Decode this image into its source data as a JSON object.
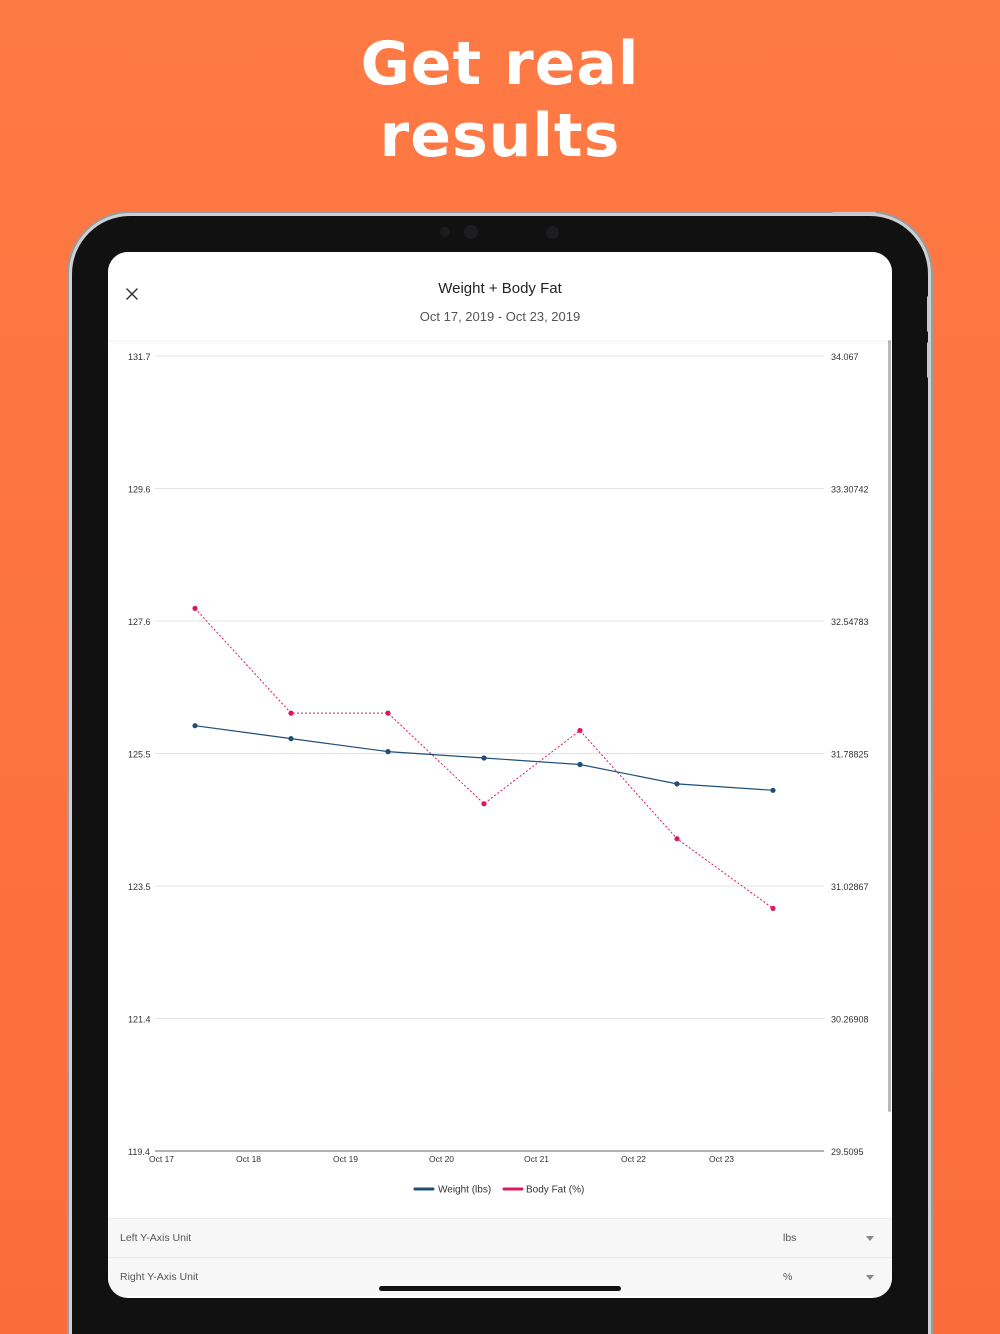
{
  "headline": {
    "line1": "Get real",
    "line2": "results"
  },
  "modal": {
    "title": "Weight + Body Fat",
    "date_range": "Oct 17, 2019 - Oct 23, 2019",
    "close_icon": "close-icon"
  },
  "colors": {
    "background": "#fc7140",
    "weight_series": "#1f4e79",
    "bodyfat_series": "#d81b60"
  },
  "chart_data": {
    "type": "line",
    "x_labels": [
      "Oct 17",
      "Oct 18",
      "Oct 19",
      "Oct 20",
      "Oct 21",
      "Oct 22",
      "Oct 23"
    ],
    "left_axis": {
      "ticks": [
        "131.7",
        "129.6",
        "127.6",
        "125.5",
        "123.5",
        "121.4",
        "119.4"
      ],
      "range": [
        119.4,
        131.7
      ]
    },
    "right_axis": {
      "ticks": [
        "34.067",
        "33.30742",
        "32.54783",
        "31.78825",
        "31.02867",
        "30.26908",
        "29.5095"
      ],
      "range": [
        29.5095,
        34.067
      ]
    },
    "series": [
      {
        "name": "Weight (lbs)",
        "axis": "left",
        "style": "solid",
        "values": [
          125.98,
          125.78,
          125.58,
          125.48,
          125.38,
          125.08,
          124.98
        ]
      },
      {
        "name": "Body Fat (%)",
        "axis": "right",
        "style": "dotted",
        "values": [
          32.62,
          32.02,
          32.02,
          31.5,
          31.92,
          31.3,
          30.9
        ]
      }
    ],
    "grid": true,
    "legend": "bottom-center"
  },
  "settings": [
    {
      "label": "Left Y-Axis Unit",
      "value": "lbs"
    },
    {
      "label": "Right Y-Axis Unit",
      "value": "%"
    }
  ]
}
